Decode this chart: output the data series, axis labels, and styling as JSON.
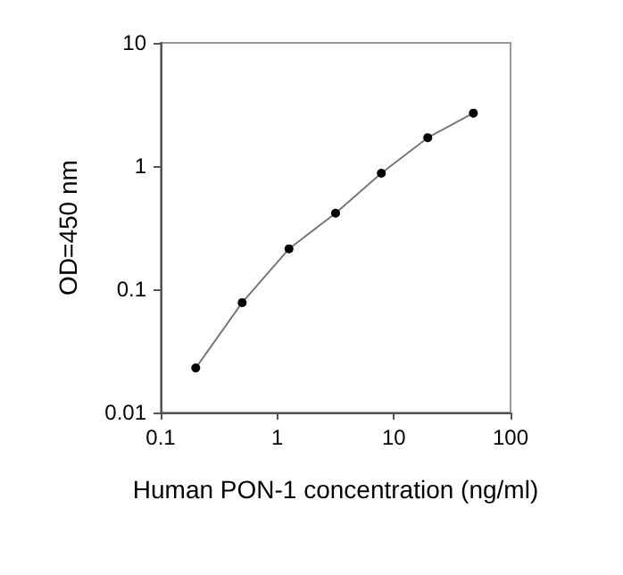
{
  "chart_data": {
    "type": "line",
    "xlabel": "Human PON-1 concentration (ng/ml)",
    "ylabel": "OD=450 nm",
    "x": [
      0.2,
      0.5,
      1.26,
      3.16,
      7.8,
      19.5,
      48
    ],
    "series": [
      {
        "color": "#000000",
        "values": [
          0.023,
          0.078,
          0.213,
          0.415,
          0.875,
          1.7,
          2.69
        ]
      }
    ],
    "log": "xy",
    "xlim": [
      0.1,
      100
    ],
    "ylim": [
      0.01,
      10
    ],
    "xticks": [
      0.1,
      1,
      10,
      100
    ],
    "yticks": [
      0.01,
      0.1,
      1,
      10
    ],
    "grid": false,
    "marker": "circle",
    "line_style": "solid"
  }
}
